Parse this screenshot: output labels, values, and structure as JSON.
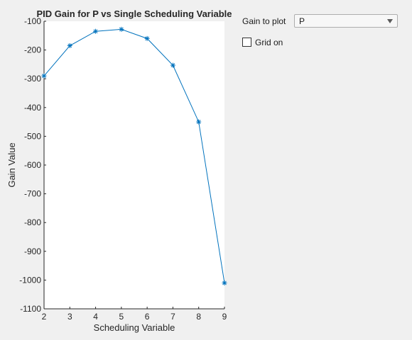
{
  "chart_data": {
    "type": "line",
    "title": "PID Gain for P vs Single Scheduling Variable",
    "xlabel": "Scheduling Variable",
    "ylabel": "Gain Value",
    "x": [
      2,
      3,
      4,
      5,
      6,
      7,
      8,
      9
    ],
    "y": [
      -290,
      -185,
      -135,
      -128,
      -160,
      -253,
      -450,
      -1010
    ],
    "xlim": [
      2,
      9
    ],
    "ylim": [
      -1100,
      -100
    ],
    "xticks": [
      2,
      3,
      4,
      5,
      6,
      7,
      8,
      9
    ],
    "yticks": [
      -100,
      -200,
      -300,
      -400,
      -500,
      -600,
      -700,
      -800,
      -900,
      -1000,
      -1100
    ],
    "marker": "asterisk",
    "line_color": "#0072bd",
    "grid": false
  },
  "controls": {
    "gain_label": "Gain to plot",
    "gain_value": "P",
    "grid_label": "Grid on",
    "grid_checked": false
  }
}
